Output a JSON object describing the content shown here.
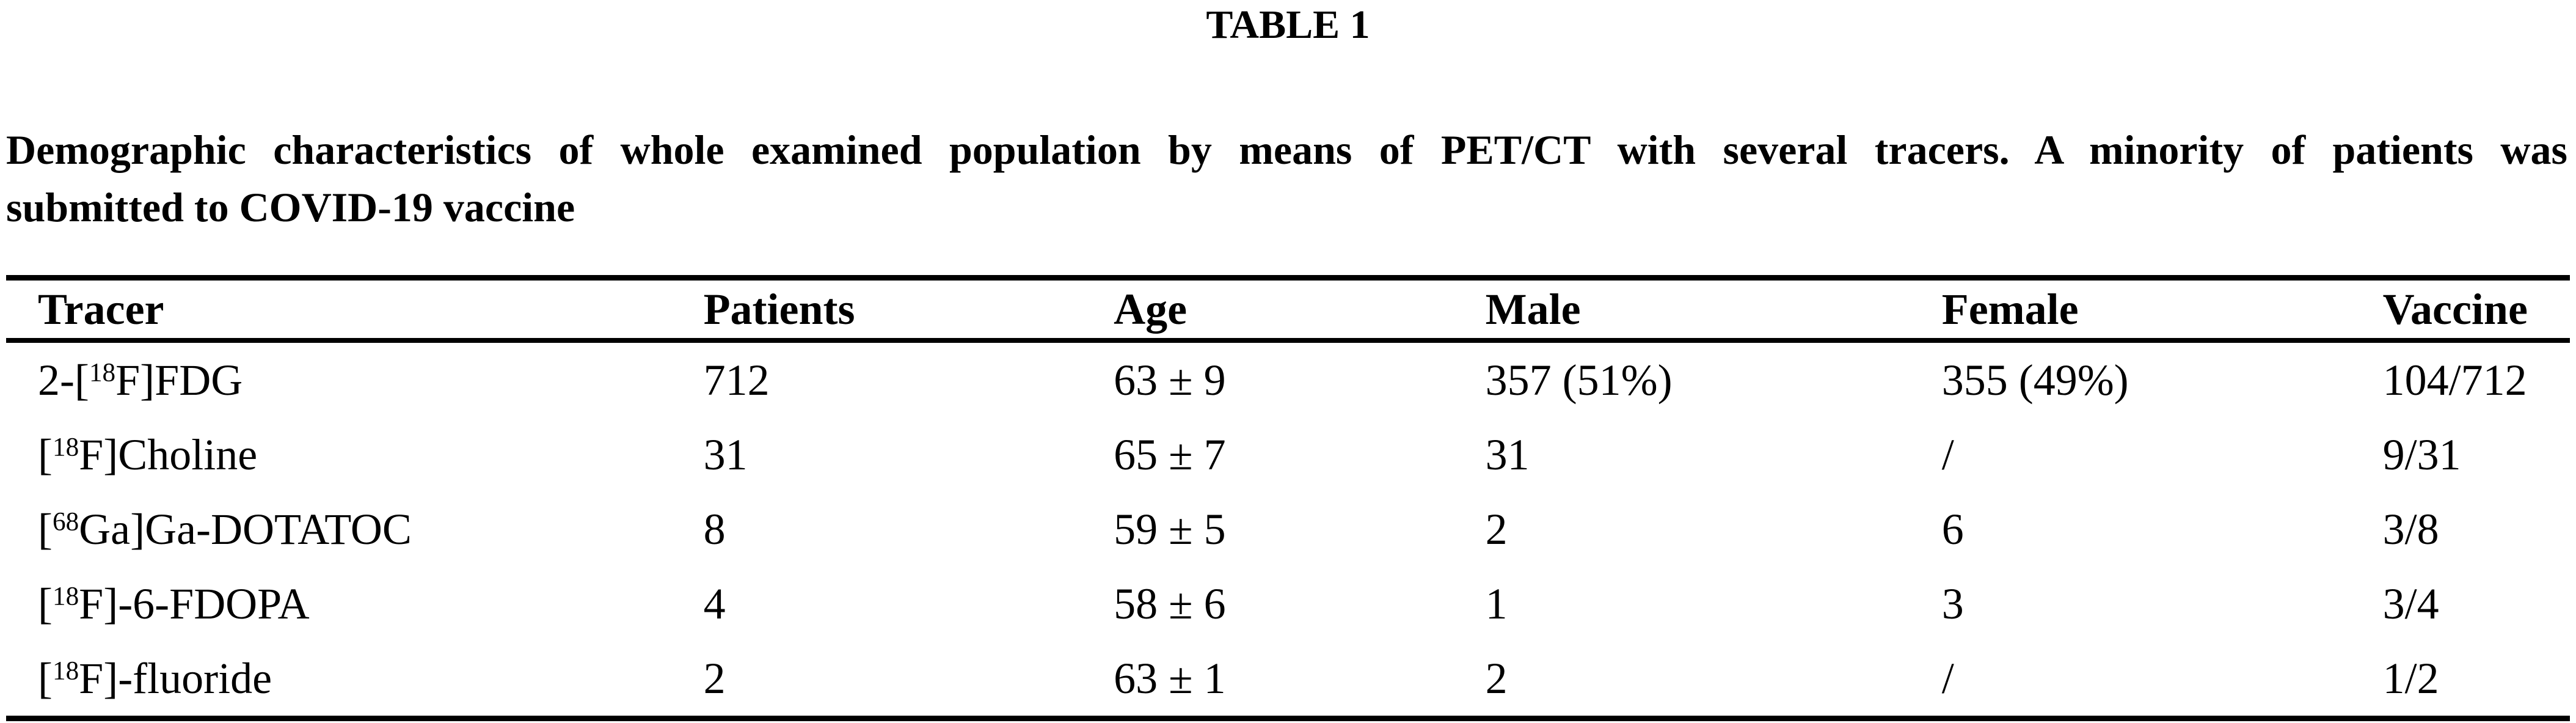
{
  "label": "TABLE 1",
  "caption": {
    "line1": "Demographic characteristics of whole examined population by means of PET/CT with several tracers. A minority of patients was",
    "line2": "submitted to COVID-19 vaccine"
  },
  "table": {
    "headers": [
      "Tracer",
      "Patients",
      "Age",
      "Male",
      "Female",
      "Vaccine"
    ],
    "rows": [
      {
        "tracer": {
          "pre": "2-[",
          "isotope": "18",
          "post": "F]FDG"
        },
        "patients": "712",
        "age": "63 ± 9",
        "male": "357 (51%)",
        "female": "355 (49%)",
        "vaccine": "104/712"
      },
      {
        "tracer": {
          "pre": "[",
          "isotope": "18",
          "post": "F]Choline"
        },
        "patients": "31",
        "age": "65 ± 7",
        "male": "31",
        "female": "/",
        "vaccine": "9/31"
      },
      {
        "tracer": {
          "pre": "[",
          "isotope": "68",
          "post": "Ga]Ga-DOTATOC"
        },
        "patients": "8",
        "age": "59 ± 5",
        "male": "2",
        "female": "6",
        "vaccine": "3/8"
      },
      {
        "tracer": {
          "pre": "[",
          "isotope": "18",
          "post": "F]-6-FDOPA"
        },
        "patients": "4",
        "age": "58 ± 6",
        "male": "1",
        "female": "3",
        "vaccine": "3/4"
      },
      {
        "tracer": {
          "pre": "[",
          "isotope": "18",
          "post": "F]-fluoride"
        },
        "patients": "2",
        "age": "63 ± 1",
        "male": "2",
        "female": "/",
        "vaccine": "1/2"
      }
    ]
  },
  "colors": {
    "text": "#000000",
    "background": "#ffffff",
    "rule": "#000000"
  }
}
